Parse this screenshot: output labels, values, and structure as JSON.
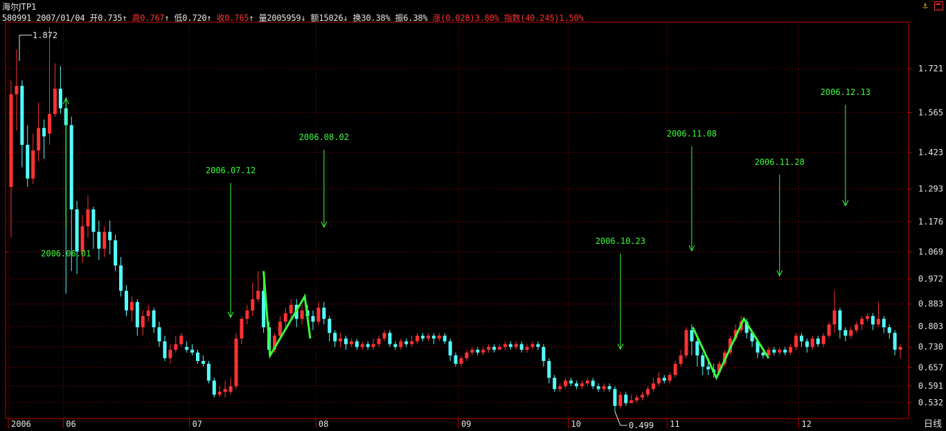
{
  "window": {
    "title": "海尔JTP1"
  },
  "quote_bar": {
    "code": "580991",
    "date": "2007/01/04",
    "open": "开0.735",
    "open_arrow": "↑",
    "high": "高0.767",
    "high_arrow": "↑",
    "low": "低0.720",
    "low_arrow": "↑",
    "close": "收0.765",
    "close_arrow": "↑",
    "volume": "量2005959",
    "volume_arrow": "↓",
    "amount": "额15026",
    "amount_arrow": "↓",
    "turnover": "换30.38%",
    "amplitude": "振6.38%",
    "change": "涨(0.028)3.80%",
    "index": "指数(40.245)1.50%"
  },
  "period_label": "日线",
  "colors": {
    "up": "#ff3232",
    "down": "#54ffff",
    "grid": "#b40000",
    "axis": "#c00000",
    "annotation": "#39ff39",
    "text": "#e6e6e6"
  },
  "chart_data": {
    "type": "candlestick",
    "y_ticks": [
      1.721,
      1.565,
      1.423,
      1.293,
      1.176,
      1.069,
      0.972,
      0.883,
      0.803,
      0.73,
      0.657,
      0.591,
      0.532
    ],
    "ylim": [
      0.475,
      1.872
    ],
    "x_labels": [
      "2006",
      "06",
      "07",
      "08",
      "09",
      "10",
      "11",
      "12"
    ],
    "x_label_bar_index": [
      0,
      10,
      33,
      56,
      82,
      102,
      120,
      144
    ],
    "max_label": "1.872",
    "min_label": "0.499",
    "annotations": [
      {
        "date": "2006.06.01",
        "bar": 10
      },
      {
        "date": "2006.07.12",
        "bar": 40
      },
      {
        "date": "2006.08.02",
        "bar": 57
      },
      {
        "date": "2006.10.23",
        "bar": 111
      },
      {
        "date": "2006.11.08",
        "bar": 124
      },
      {
        "date": "2006.11.28",
        "bar": 140
      },
      {
        "date": "2006.12.13",
        "bar": 152
      }
    ],
    "zigzags": [
      [
        [
          46.0,
          1.0
        ],
        [
          47.2,
          0.7
        ],
        [
          53.5,
          0.91
        ],
        [
          54.5,
          0.76
        ]
      ],
      [
        [
          124.2,
          0.8
        ],
        [
          128.5,
          0.62
        ],
        [
          133.5,
          0.83
        ],
        [
          138.0,
          0.69
        ]
      ]
    ],
    "candles": [
      [
        1.3,
        1.63,
        1.68,
        1.12
      ],
      [
        1.63,
        1.66,
        1.79,
        1.5
      ],
      [
        1.66,
        1.45,
        1.68,
        1.37
      ],
      [
        1.45,
        1.33,
        1.52,
        1.3
      ],
      [
        1.33,
        1.43,
        1.49,
        1.31
      ],
      [
        1.43,
        1.51,
        1.6,
        1.39
      ],
      [
        1.51,
        1.48,
        1.54,
        1.4
      ],
      [
        1.49,
        1.56,
        1.87,
        1.45
      ],
      [
        1.56,
        1.65,
        1.74,
        1.55
      ],
      [
        1.65,
        1.58,
        1.73,
        1.56
      ],
      [
        1.58,
        1.52,
        1.62,
        0.92
      ],
      [
        1.52,
        1.22,
        1.55,
        1.0
      ],
      [
        1.22,
        1.07,
        1.25,
        0.99
      ],
      [
        1.07,
        1.16,
        1.2,
        1.03
      ],
      [
        1.16,
        1.22,
        1.27,
        1.12
      ],
      [
        1.22,
        1.14,
        1.23,
        1.08
      ],
      [
        1.14,
        1.08,
        1.18,
        1.04
      ],
      [
        1.08,
        1.14,
        1.16,
        1.05
      ],
      [
        1.14,
        1.11,
        1.18,
        1.06
      ],
      [
        1.11,
        1.02,
        1.13,
        1.0
      ],
      [
        1.02,
        0.93,
        1.05,
        0.91
      ],
      [
        0.93,
        0.86,
        0.95,
        0.84
      ],
      [
        0.86,
        0.89,
        0.91,
        0.82
      ],
      [
        0.89,
        0.8,
        0.9,
        0.77
      ],
      [
        0.8,
        0.84,
        0.86,
        0.77
      ],
      [
        0.84,
        0.86,
        0.88,
        0.82
      ],
      [
        0.86,
        0.8,
        0.87,
        0.78
      ],
      [
        0.8,
        0.75,
        0.82,
        0.73
      ],
      [
        0.75,
        0.69,
        0.77,
        0.68
      ],
      [
        0.69,
        0.72,
        0.74,
        0.67
      ],
      [
        0.72,
        0.74,
        0.77,
        0.71
      ],
      [
        0.74,
        0.77,
        0.78,
        0.73
      ],
      [
        0.73,
        0.72,
        0.75,
        0.71
      ],
      [
        0.72,
        0.71,
        0.74,
        0.7
      ],
      [
        0.71,
        0.68,
        0.72,
        0.67
      ],
      [
        0.68,
        0.67,
        0.7,
        0.66
      ],
      [
        0.67,
        0.61,
        0.68,
        0.6
      ],
      [
        0.61,
        0.56,
        0.62,
        0.55
      ],
      [
        0.56,
        0.57,
        0.59,
        0.55
      ],
      [
        0.57,
        0.58,
        0.61,
        0.55
      ],
      [
        0.57,
        0.59,
        0.62,
        0.56
      ],
      [
        0.59,
        0.76,
        0.78,
        0.58
      ],
      [
        0.76,
        0.83,
        0.84,
        0.74
      ],
      [
        0.83,
        0.86,
        0.88,
        0.81
      ],
      [
        0.86,
        0.9,
        0.96,
        0.84
      ],
      [
        0.9,
        0.93,
        1.0,
        0.89
      ],
      [
        0.93,
        0.8,
        0.99,
        0.78
      ],
      [
        0.8,
        0.72,
        0.82,
        0.7
      ],
      [
        0.72,
        0.77,
        0.78,
        0.71
      ],
      [
        0.77,
        0.82,
        0.84,
        0.76
      ],
      [
        0.82,
        0.85,
        0.87,
        0.8
      ],
      [
        0.85,
        0.88,
        0.9,
        0.83
      ],
      [
        0.88,
        0.83,
        0.9,
        0.8
      ],
      [
        0.83,
        0.86,
        0.88,
        0.81
      ],
      [
        0.86,
        0.84,
        0.88,
        0.81
      ],
      [
        0.84,
        0.82,
        0.86,
        0.79
      ],
      [
        0.82,
        0.87,
        0.89,
        0.81
      ],
      [
        0.87,
        0.83,
        0.89,
        0.81
      ],
      [
        0.83,
        0.78,
        0.84,
        0.75
      ],
      [
        0.78,
        0.75,
        0.79,
        0.73
      ],
      [
        0.75,
        0.76,
        0.78,
        0.73
      ],
      [
        0.76,
        0.74,
        0.77,
        0.72
      ],
      [
        0.74,
        0.75,
        0.76,
        0.73
      ],
      [
        0.75,
        0.73,
        0.76,
        0.72
      ],
      [
        0.73,
        0.74,
        0.75,
        0.72
      ],
      [
        0.74,
        0.73,
        0.75,
        0.72
      ],
      [
        0.73,
        0.74,
        0.76,
        0.72
      ],
      [
        0.74,
        0.76,
        0.77,
        0.73
      ],
      [
        0.76,
        0.78,
        0.79,
        0.75
      ],
      [
        0.78,
        0.74,
        0.79,
        0.73
      ],
      [
        0.74,
        0.73,
        0.75,
        0.72
      ],
      [
        0.73,
        0.75,
        0.76,
        0.72
      ],
      [
        0.75,
        0.74,
        0.76,
        0.73
      ],
      [
        0.74,
        0.75,
        0.77,
        0.73
      ],
      [
        0.75,
        0.77,
        0.78,
        0.74
      ],
      [
        0.77,
        0.76,
        0.78,
        0.75
      ],
      [
        0.76,
        0.77,
        0.78,
        0.75
      ],
      [
        0.77,
        0.76,
        0.78,
        0.74
      ],
      [
        0.76,
        0.77,
        0.78,
        0.75
      ],
      [
        0.77,
        0.75,
        0.78,
        0.74
      ],
      [
        0.75,
        0.7,
        0.76,
        0.68
      ],
      [
        0.7,
        0.67,
        0.71,
        0.66
      ],
      [
        0.67,
        0.69,
        0.7,
        0.66
      ],
      [
        0.69,
        0.71,
        0.72,
        0.68
      ],
      [
        0.71,
        0.72,
        0.73,
        0.7
      ],
      [
        0.72,
        0.71,
        0.73,
        0.7
      ],
      [
        0.71,
        0.72,
        0.73,
        0.7
      ],
      [
        0.72,
        0.73,
        0.74,
        0.71
      ],
      [
        0.73,
        0.72,
        0.74,
        0.71
      ],
      [
        0.72,
        0.73,
        0.74,
        0.72
      ],
      [
        0.73,
        0.74,
        0.75,
        0.72
      ],
      [
        0.74,
        0.73,
        0.75,
        0.72
      ],
      [
        0.73,
        0.74,
        0.75,
        0.72
      ],
      [
        0.74,
        0.72,
        0.75,
        0.71
      ],
      [
        0.72,
        0.73,
        0.74,
        0.71
      ],
      [
        0.73,
        0.74,
        0.75,
        0.72
      ],
      [
        0.74,
        0.73,
        0.75,
        0.72
      ],
      [
        0.73,
        0.68,
        0.74,
        0.66
      ],
      [
        0.68,
        0.62,
        0.69,
        0.6
      ],
      [
        0.62,
        0.58,
        0.63,
        0.57
      ],
      [
        0.58,
        0.59,
        0.6,
        0.57
      ],
      [
        0.59,
        0.61,
        0.62,
        0.58
      ],
      [
        0.61,
        0.6,
        0.62,
        0.59
      ],
      [
        0.6,
        0.59,
        0.61,
        0.58
      ],
      [
        0.59,
        0.6,
        0.61,
        0.58
      ],
      [
        0.6,
        0.61,
        0.62,
        0.59
      ],
      [
        0.61,
        0.59,
        0.62,
        0.58
      ],
      [
        0.59,
        0.58,
        0.6,
        0.57
      ],
      [
        0.58,
        0.59,
        0.6,
        0.57
      ],
      [
        0.59,
        0.58,
        0.6,
        0.57
      ],
      [
        0.58,
        0.52,
        0.59,
        0.5
      ],
      [
        0.52,
        0.56,
        0.57,
        0.51
      ],
      [
        0.56,
        0.53,
        0.57,
        0.52
      ],
      [
        0.53,
        0.54,
        0.56,
        0.53
      ],
      [
        0.54,
        0.55,
        0.56,
        0.53
      ],
      [
        0.55,
        0.56,
        0.57,
        0.54
      ],
      [
        0.56,
        0.58,
        0.59,
        0.55
      ],
      [
        0.58,
        0.6,
        0.62,
        0.57
      ],
      [
        0.6,
        0.62,
        0.64,
        0.59
      ],
      [
        0.62,
        0.61,
        0.63,
        0.6
      ],
      [
        0.61,
        0.63,
        0.64,
        0.6
      ],
      [
        0.63,
        0.67,
        0.68,
        0.62
      ],
      [
        0.67,
        0.7,
        0.72,
        0.66
      ],
      [
        0.7,
        0.79,
        0.8,
        0.69
      ],
      [
        0.79,
        0.75,
        0.81,
        0.7
      ],
      [
        0.75,
        0.7,
        0.76,
        0.66
      ],
      [
        0.7,
        0.66,
        0.71,
        0.63
      ],
      [
        0.66,
        0.65,
        0.68,
        0.63
      ],
      [
        0.65,
        0.64,
        0.67,
        0.62
      ],
      [
        0.64,
        0.67,
        0.68,
        0.63
      ],
      [
        0.67,
        0.71,
        0.72,
        0.66
      ],
      [
        0.71,
        0.76,
        0.77,
        0.7
      ],
      [
        0.76,
        0.79,
        0.81,
        0.75
      ],
      [
        0.79,
        0.82,
        0.84,
        0.78
      ],
      [
        0.82,
        0.78,
        0.83,
        0.76
      ],
      [
        0.78,
        0.75,
        0.79,
        0.73
      ],
      [
        0.75,
        0.71,
        0.76,
        0.69
      ],
      [
        0.71,
        0.7,
        0.72,
        0.69
      ],
      [
        0.7,
        0.72,
        0.73,
        0.69
      ],
      [
        0.72,
        0.71,
        0.73,
        0.7
      ],
      [
        0.71,
        0.72,
        0.73,
        0.7
      ],
      [
        0.72,
        0.71,
        0.73,
        0.7
      ],
      [
        0.71,
        0.73,
        0.74,
        0.7
      ],
      [
        0.73,
        0.77,
        0.78,
        0.72
      ],
      [
        0.77,
        0.75,
        0.78,
        0.73
      ],
      [
        0.75,
        0.73,
        0.76,
        0.71
      ],
      [
        0.73,
        0.76,
        0.77,
        0.72
      ],
      [
        0.76,
        0.74,
        0.77,
        0.73
      ],
      [
        0.74,
        0.77,
        0.78,
        0.73
      ],
      [
        0.77,
        0.81,
        0.82,
        0.76
      ],
      [
        0.81,
        0.86,
        0.93,
        0.78
      ],
      [
        0.86,
        0.79,
        0.87,
        0.76
      ],
      [
        0.79,
        0.77,
        0.8,
        0.75
      ],
      [
        0.77,
        0.79,
        0.8,
        0.76
      ],
      [
        0.79,
        0.81,
        0.82,
        0.78
      ],
      [
        0.81,
        0.83,
        0.84,
        0.79
      ],
      [
        0.83,
        0.84,
        0.85,
        0.82
      ],
      [
        0.84,
        0.81,
        0.85,
        0.79
      ],
      [
        0.81,
        0.83,
        0.89,
        0.8
      ],
      [
        0.83,
        0.8,
        0.84,
        0.78
      ],
      [
        0.8,
        0.78,
        0.81,
        0.76
      ],
      [
        0.78,
        0.72,
        0.79,
        0.7
      ],
      [
        0.72,
        0.73,
        0.74,
        0.69
      ]
    ]
  }
}
